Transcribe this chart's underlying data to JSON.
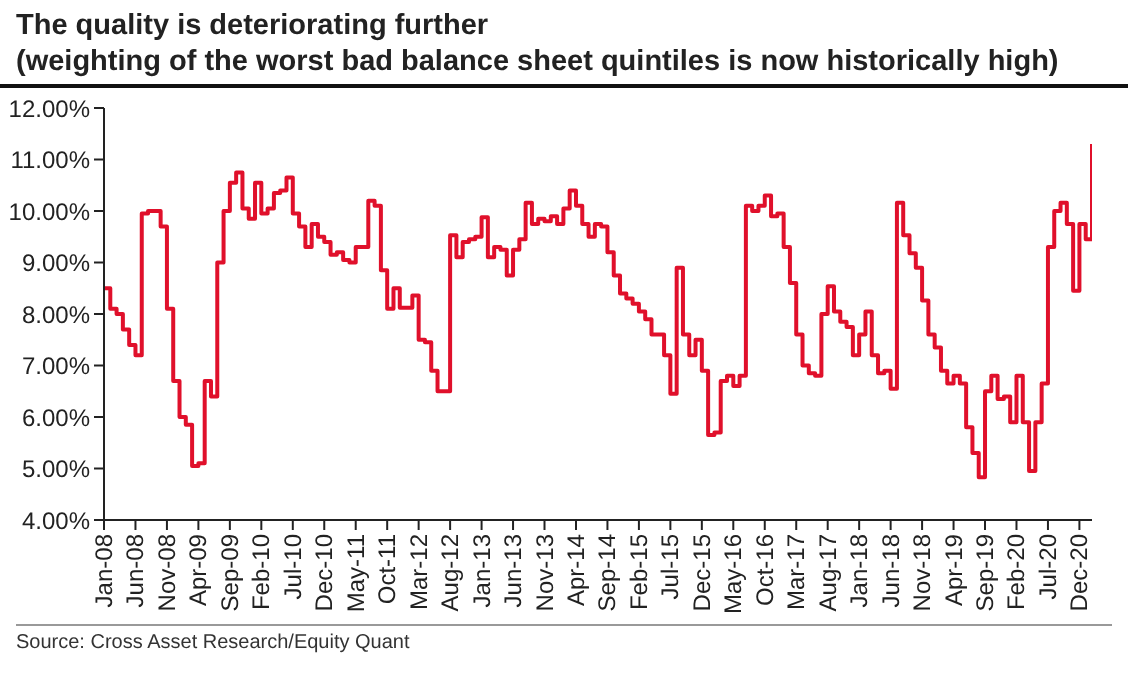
{
  "chart_data": {
    "type": "step",
    "title": "The quality is deteriorating further\n(weighting of the worst bad balance sheet quintiles is now historically high)",
    "annotations": [
      "Source: Cross Asset Research/Equity Quant"
    ],
    "x": [
      "2008-01",
      "2008-02",
      "2008-03",
      "2008-04",
      "2008-05",
      "2008-06",
      "2008-07",
      "2008-08",
      "2008-09",
      "2008-10",
      "2008-11",
      "2008-12",
      "2009-01",
      "2009-02",
      "2009-03",
      "2009-04",
      "2009-05",
      "2009-06",
      "2009-07",
      "2009-08",
      "2009-09",
      "2009-10",
      "2009-11",
      "2009-12",
      "2010-01",
      "2010-02",
      "2010-03",
      "2010-04",
      "2010-05",
      "2010-06",
      "2010-07",
      "2010-08",
      "2010-09",
      "2010-10",
      "2010-11",
      "2010-12",
      "2011-01",
      "2011-02",
      "2011-03",
      "2011-04",
      "2011-05",
      "2011-06",
      "2011-07",
      "2011-08",
      "2011-09",
      "2011-10",
      "2011-11",
      "2011-12",
      "2012-01",
      "2012-02",
      "2012-03",
      "2012-04",
      "2012-05",
      "2012-06",
      "2012-07",
      "2012-08",
      "2012-09",
      "2012-10",
      "2012-11",
      "2012-12",
      "2013-01",
      "2013-02",
      "2013-03",
      "2013-04",
      "2013-05",
      "2013-06",
      "2013-07",
      "2013-08",
      "2013-09",
      "2013-10",
      "2013-11",
      "2013-12",
      "2014-01",
      "2014-02",
      "2014-03",
      "2014-04",
      "2014-05",
      "2014-06",
      "2014-07",
      "2014-08",
      "2014-09",
      "2014-10",
      "2014-11",
      "2014-12",
      "2015-01",
      "2015-02",
      "2015-03",
      "2015-04",
      "2015-05",
      "2015-06",
      "2015-07",
      "2015-08",
      "2015-09",
      "2015-10",
      "2015-11",
      "2015-12",
      "2016-01",
      "2016-02",
      "2016-03",
      "2016-04",
      "2016-05",
      "2016-06",
      "2016-07",
      "2016-08",
      "2016-09",
      "2016-10",
      "2016-11",
      "2016-12",
      "2017-01",
      "2017-02",
      "2017-03",
      "2017-04",
      "2017-05",
      "2017-06",
      "2017-07",
      "2017-08",
      "2017-09",
      "2017-10",
      "2017-11",
      "2017-12",
      "2018-01",
      "2018-02",
      "2018-03",
      "2018-04",
      "2018-05",
      "2018-06",
      "2018-07",
      "2018-08",
      "2018-09",
      "2018-10",
      "2018-11",
      "2018-12",
      "2019-01",
      "2019-02",
      "2019-03",
      "2019-04",
      "2019-05",
      "2019-06",
      "2019-07",
      "2019-08",
      "2019-09",
      "2019-10",
      "2019-11",
      "2019-12",
      "2020-01",
      "2020-02",
      "2020-03",
      "2020-04",
      "2020-05",
      "2020-06",
      "2020-07",
      "2020-08",
      "2020-09",
      "2020-10",
      "2020-11",
      "2020-12",
      "2021-01",
      "2021-02"
    ],
    "series": [
      {
        "color": "#e0102b",
        "values": [
          8.5,
          8.1,
          8.0,
          7.7,
          7.4,
          7.2,
          9.95,
          10.0,
          10.0,
          9.7,
          8.1,
          6.7,
          6.0,
          5.85,
          5.05,
          5.1,
          6.7,
          6.4,
          9.0,
          10.0,
          10.55,
          10.75,
          10.05,
          9.85,
          10.55,
          9.95,
          10.05,
          10.35,
          10.4,
          10.65,
          9.95,
          9.7,
          9.3,
          9.75,
          9.5,
          9.4,
          9.15,
          9.2,
          9.05,
          9.0,
          9.3,
          9.3,
          10.2,
          10.1,
          8.85,
          8.1,
          8.5,
          8.12,
          8.12,
          8.36,
          7.5,
          7.45,
          6.9,
          6.5,
          6.5,
          9.53,
          9.1,
          9.4,
          9.45,
          9.5,
          9.88,
          9.1,
          9.3,
          9.25,
          8.75,
          9.25,
          9.45,
          10.16,
          9.75,
          9.85,
          9.8,
          9.9,
          9.75,
          10.05,
          10.4,
          10.1,
          9.75,
          9.5,
          9.75,
          9.7,
          9.2,
          8.75,
          8.4,
          8.3,
          8.2,
          8.05,
          7.9,
          7.6,
          7.6,
          7.2,
          6.45,
          8.9,
          7.6,
          7.2,
          7.5,
          6.9,
          5.65,
          5.7,
          6.7,
          6.8,
          6.6,
          6.8,
          10.1,
          10.0,
          10.1,
          10.3,
          9.9,
          9.95,
          9.3,
          8.6,
          7.6,
          7.0,
          6.85,
          6.8,
          8.0,
          8.54,
          8.05,
          7.85,
          7.75,
          7.2,
          7.6,
          8.05,
          7.2,
          6.85,
          6.9,
          6.55,
          10.16,
          9.53,
          9.18,
          8.9,
          8.26,
          7.6,
          7.35,
          6.9,
          6.65,
          6.8,
          6.65,
          5.8,
          5.3,
          4.83,
          6.5,
          6.8,
          6.35,
          6.4,
          5.9,
          6.8,
          5.9,
          4.95,
          5.9,
          6.65,
          9.3,
          10.0,
          10.16,
          9.75,
          8.45,
          9.75,
          9.45,
          11.3
        ]
      }
    ],
    "xlim": [
      "2008-01",
      "2021-02"
    ],
    "xticks": [
      {
        "value": "2008-01",
        "label": "Jan-08"
      },
      {
        "value": "2008-06",
        "label": "Jun-08"
      },
      {
        "value": "2008-11",
        "label": "Nov-08"
      },
      {
        "value": "2009-04",
        "label": "Apr-09"
      },
      {
        "value": "2009-09",
        "label": "Sep-09"
      },
      {
        "value": "2010-02",
        "label": "Feb-10"
      },
      {
        "value": "2010-07",
        "label": "Jul-10"
      },
      {
        "value": "2010-12",
        "label": "Dec-10"
      },
      {
        "value": "2011-05",
        "label": "May-11"
      },
      {
        "value": "2011-10",
        "label": "Oct-11"
      },
      {
        "value": "2012-03",
        "label": "Mar-12"
      },
      {
        "value": "2012-08",
        "label": "Aug-12"
      },
      {
        "value": "2013-01",
        "label": "Jan-13"
      },
      {
        "value": "2013-06",
        "label": "Jun-13"
      },
      {
        "value": "2013-11",
        "label": "Nov-13"
      },
      {
        "value": "2014-04",
        "label": "Apr-14"
      },
      {
        "value": "2014-09",
        "label": "Sep-14"
      },
      {
        "value": "2015-02",
        "label": "Feb-15"
      },
      {
        "value": "2015-07",
        "label": "Jul-15"
      },
      {
        "value": "2015-12",
        "label": "Dec-15"
      },
      {
        "value": "2016-05",
        "label": "May-16"
      },
      {
        "value": "2016-10",
        "label": "Oct-16"
      },
      {
        "value": "2017-03",
        "label": "Mar-17"
      },
      {
        "value": "2017-08",
        "label": "Aug-17"
      },
      {
        "value": "2018-01",
        "label": "Jan-18"
      },
      {
        "value": "2018-06",
        "label": "Jun-18"
      },
      {
        "value": "2018-11",
        "label": "Nov-18"
      },
      {
        "value": "2019-04",
        "label": "Apr-19"
      },
      {
        "value": "2019-09",
        "label": "Sep-19"
      },
      {
        "value": "2020-02",
        "label": "Feb-20"
      },
      {
        "value": "2020-07",
        "label": "Jul-20"
      },
      {
        "value": "2020-12",
        "label": "Dec-20"
      }
    ],
    "ylim": [
      4,
      12
    ],
    "yticks": [
      {
        "value": 4,
        "label": "4.00%"
      },
      {
        "value": 5,
        "label": "5.00%"
      },
      {
        "value": 6,
        "label": "6.00%"
      },
      {
        "value": 7,
        "label": "7.00%"
      },
      {
        "value": 8,
        "label": "8.00%"
      },
      {
        "value": 9,
        "label": "9.00%"
      },
      {
        "value": 10,
        "label": "10.00%"
      },
      {
        "value": 11,
        "label": "11.00%"
      },
      {
        "value": 12,
        "label": "12.00%"
      }
    ],
    "grid": false,
    "legend": false,
    "marker": "none",
    "line_style": "solid"
  }
}
